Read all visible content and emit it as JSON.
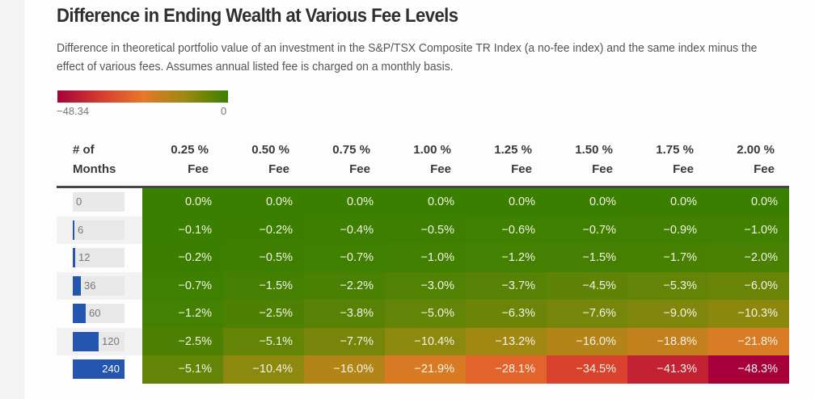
{
  "title": "Difference in Ending Wealth at Various Fee Levels",
  "subtitle": "Difference in theoretical portfolio value of an investment in the S&P/TSX Composite TR Index (a no-fee index) and the same index minus the effect of various fees. Assumes annual listed fee is charged on a monthly basis.",
  "legend": {
    "min_label": "−48.34",
    "max_label": "0",
    "min": -48.34,
    "max": 0,
    "colors": [
      "#a8003a",
      "#d63a2f",
      "#e8782a",
      "#9a8a10",
      "#3a7f00"
    ]
  },
  "chart_data": {
    "type": "heatmap",
    "title": "Difference in Ending Wealth at Various Fee Levels",
    "row_header": [
      "# of",
      "Months"
    ],
    "columns": [
      {
        "line1": "0.25 %",
        "line2": "Fee"
      },
      {
        "line1": "0.50 %",
        "line2": "Fee"
      },
      {
        "line1": "0.75 %",
        "line2": "Fee"
      },
      {
        "line1": "1.00 %",
        "line2": "Fee"
      },
      {
        "line1": "1.25 %",
        "line2": "Fee"
      },
      {
        "line1": "1.50 %",
        "line2": "Fee"
      },
      {
        "line1": "1.75 %",
        "line2": "Fee"
      },
      {
        "line1": "2.00 %",
        "line2": "Fee"
      }
    ],
    "months": [
      0,
      6,
      12,
      36,
      60,
      120,
      240
    ],
    "months_max": 240,
    "values": [
      [
        0.0,
        0.0,
        0.0,
        0.0,
        0.0,
        0.0,
        0.0,
        0.0
      ],
      [
        -0.1,
        -0.2,
        -0.4,
        -0.5,
        -0.6,
        -0.7,
        -0.9,
        -1.0
      ],
      [
        -0.2,
        -0.5,
        -0.7,
        -1.0,
        -1.2,
        -1.5,
        -1.7,
        -2.0
      ],
      [
        -0.7,
        -1.5,
        -2.2,
        -3.0,
        -3.7,
        -4.5,
        -5.3,
        -6.0
      ],
      [
        -1.2,
        -2.5,
        -3.8,
        -5.0,
        -6.3,
        -7.6,
        -9.0,
        -10.3
      ],
      [
        -2.5,
        -5.1,
        -7.7,
        -10.4,
        -13.2,
        -16.0,
        -18.8,
        -21.8
      ],
      [
        -5.1,
        -10.4,
        -16.0,
        -21.9,
        -28.1,
        -34.5,
        -41.3,
        -48.3
      ]
    ],
    "labels": [
      [
        "0.0%",
        "0.0%",
        "0.0%",
        "0.0%",
        "0.0%",
        "0.0%",
        "0.0%",
        "0.0%"
      ],
      [
        "−0.1%",
        "−0.2%",
        "−0.4%",
        "−0.5%",
        "−0.6%",
        "−0.7%",
        "−0.9%",
        "−1.0%"
      ],
      [
        "−0.2%",
        "−0.5%",
        "−0.7%",
        "−1.0%",
        "−1.2%",
        "−1.5%",
        "−1.7%",
        "−2.0%"
      ],
      [
        "−0.7%",
        "−1.5%",
        "−2.2%",
        "−3.0%",
        "−3.7%",
        "−4.5%",
        "−5.3%",
        "−6.0%"
      ],
      [
        "−1.2%",
        "−2.5%",
        "−3.8%",
        "−5.0%",
        "−6.3%",
        "−7.6%",
        "−9.0%",
        "−10.3%"
      ],
      [
        "−2.5%",
        "−5.1%",
        "−7.7%",
        "−10.4%",
        "−13.2%",
        "−16.0%",
        "−18.8%",
        "−21.8%"
      ],
      [
        "−5.1%",
        "−10.4%",
        "−16.0%",
        "−21.9%",
        "−28.1%",
        "−34.5%",
        "−41.3%",
        "−48.3%"
      ]
    ]
  }
}
